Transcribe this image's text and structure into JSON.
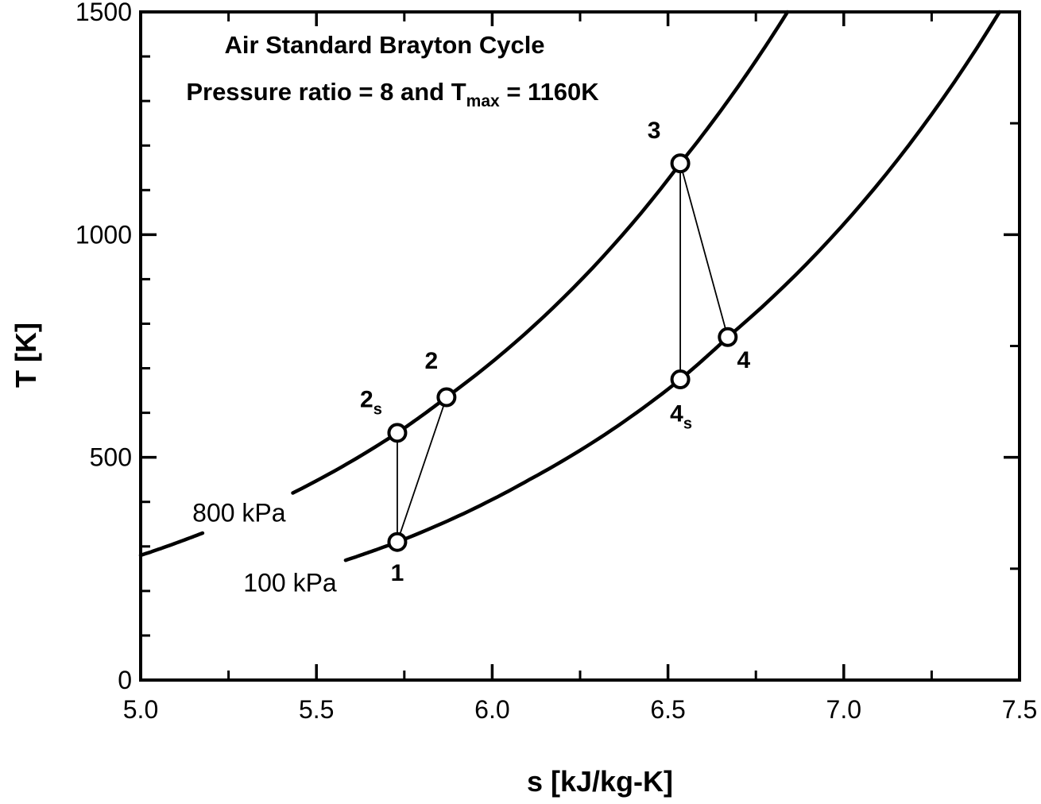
{
  "chart_data": {
    "type": "line",
    "title": "Air Standard Brayton Cycle",
    "subtitle": {
      "prefix": "Pressure ratio = 8 and T",
      "sub": "max",
      "suffix": " = 1160K"
    },
    "xlabel": "s [kJ/kg-K]",
    "ylabel": "T [K]",
    "xlim": [
      5.0,
      7.5
    ],
    "ylim": [
      0,
      1500
    ],
    "x_major_ticks": [
      5.0,
      5.5,
      6.0,
      6.5,
      7.0,
      7.5
    ],
    "x_tick_labels": [
      "5.0",
      "5.5",
      "6.0",
      "6.5",
      "7.0",
      "7.5"
    ],
    "x_minor_ticks": [
      5.25,
      5.75,
      6.25,
      6.75,
      7.25
    ],
    "y_major_ticks": [
      0,
      500,
      1000,
      1500
    ],
    "y_tick_labels": [
      "0",
      "500",
      "1000",
      "1500"
    ],
    "y_minor_ticks_left": [
      100,
      200,
      300,
      400,
      600,
      700,
      800,
      900,
      1100,
      1200,
      1300,
      1400
    ],
    "y_major_ticks_right": [
      500,
      1000
    ],
    "y_minor_ticks_right": [
      250,
      750,
      1250
    ],
    "grid": "off",
    "colors": {
      "foreground": "#000000",
      "background": "#ffffff"
    },
    "isobars": [
      {
        "label": "800 kPa",
        "pressure_kPa": 800,
        "anchors_s_T": [
          [
            5.0,
            280
          ],
          [
            5.176,
            330
          ],
          [
            5.42,
            415
          ],
          [
            5.73,
            555
          ],
          [
            5.87,
            635
          ],
          [
            6.535,
            1160
          ],
          [
            6.84,
            1500
          ]
        ],
        "label_gap_s": [
          5.176,
          5.42
        ],
        "label_pos": {
          "s": 5.28,
          "T": 375
        }
      },
      {
        "label": "100 kPa",
        "pressure_kPa": 100,
        "anchors_s_T": [
          [
            5.583,
            269
          ],
          [
            5.73,
            310
          ],
          [
            6.108,
            451
          ],
          [
            6.535,
            675
          ],
          [
            6.67,
            770
          ],
          [
            7.443,
            1500
          ]
        ],
        "label_pos": {
          "s": 5.425,
          "T": 218
        }
      }
    ],
    "state_points": [
      {
        "name": "1",
        "label": "1",
        "label_sub": "",
        "s": 5.73,
        "T": 310
      },
      {
        "name": "2s",
        "label": "2",
        "label_sub": "s",
        "s": 5.73,
        "T": 555
      },
      {
        "name": "2",
        "label": "2",
        "label_sub": "",
        "s": 5.87,
        "T": 635
      },
      {
        "name": "3",
        "label": "3",
        "label_sub": "",
        "s": 6.535,
        "T": 1160
      },
      {
        "name": "4s",
        "label": "4",
        "label_sub": "s",
        "s": 6.535,
        "T": 675
      },
      {
        "name": "4",
        "label": "4",
        "label_sub": "",
        "s": 6.67,
        "T": 770
      }
    ],
    "process_lines": [
      [
        "1",
        "2s"
      ],
      [
        "1",
        "2"
      ],
      [
        "3",
        "4s"
      ],
      [
        "3",
        "4"
      ]
    ]
  }
}
